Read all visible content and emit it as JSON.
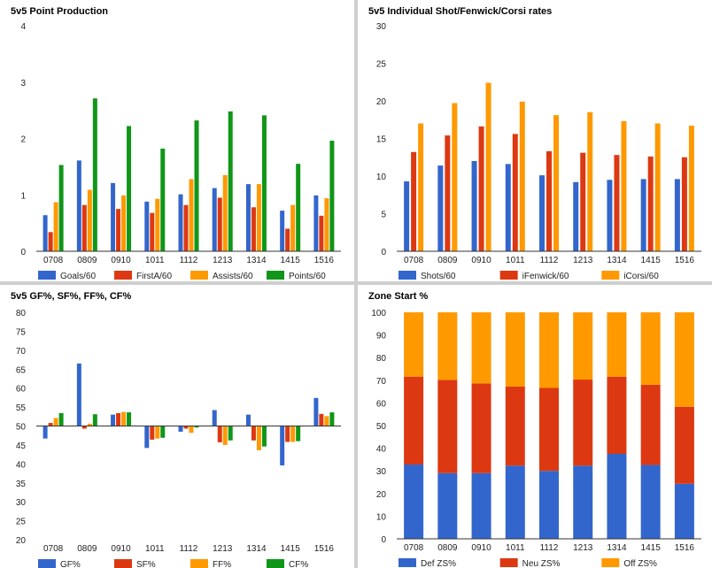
{
  "colors": {
    "blue": "#3366cc",
    "red": "#dc3912",
    "orange": "#ff9900",
    "green": "#109618",
    "grid": "#cccccc"
  },
  "chart_data": [
    {
      "type": "bar",
      "title": "5v5 Point Production",
      "categories": [
        "0708",
        "0809",
        "0910",
        "1011",
        "1112",
        "1213",
        "1314",
        "1415",
        "1516"
      ],
      "ylim": [
        0,
        4
      ],
      "yticks": [
        0,
        1,
        2,
        3,
        4
      ],
      "grid": false,
      "legend": "bottom",
      "series": [
        {
          "name": "Goals/60",
          "color": "#3366cc",
          "values": [
            0.64,
            1.61,
            1.21,
            0.88,
            1.01,
            1.12,
            1.19,
            0.72,
            0.99
          ]
        },
        {
          "name": "FirstA/60",
          "color": "#dc3912",
          "values": [
            0.34,
            0.82,
            0.75,
            0.68,
            0.82,
            0.95,
            0.78,
            0.4,
            0.63
          ]
        },
        {
          "name": "Assists/60",
          "color": "#ff9900",
          "values": [
            0.87,
            1.09,
            0.99,
            0.93,
            1.28,
            1.35,
            1.19,
            0.82,
            0.94
          ]
        },
        {
          "name": "Points/60",
          "color": "#109618",
          "values": [
            1.53,
            2.71,
            2.22,
            1.82,
            2.32,
            2.48,
            2.41,
            1.55,
            1.96
          ]
        }
      ]
    },
    {
      "type": "bar",
      "title": "5v5 Individual Shot/Fenwick/Corsi rates",
      "categories": [
        "0708",
        "0809",
        "0910",
        "1011",
        "1112",
        "1213",
        "1314",
        "1415",
        "1516"
      ],
      "ylim": [
        0,
        30
      ],
      "yticks": [
        0,
        5,
        10,
        15,
        20,
        25,
        30
      ],
      "grid": false,
      "legend": "bottom",
      "series": [
        {
          "name": "Shots/60",
          "color": "#3366cc",
          "values": [
            9.3,
            11.4,
            12.0,
            11.6,
            10.1,
            9.2,
            9.5,
            9.6,
            9.6
          ]
        },
        {
          "name": "iFenwick/60",
          "color": "#dc3912",
          "values": [
            13.2,
            15.4,
            16.6,
            15.6,
            13.3,
            13.1,
            12.8,
            12.6,
            12.5
          ]
        },
        {
          "name": "iCorsi/60",
          "color": "#ff9900",
          "values": [
            17.0,
            19.7,
            22.4,
            19.9,
            18.1,
            18.5,
            17.3,
            17.0,
            16.7
          ]
        }
      ]
    },
    {
      "type": "bar",
      "title": "5v5 GF%, SF%, FF%, CF%",
      "categories": [
        "0708",
        "0809",
        "0910",
        "1011",
        "1112",
        "1213",
        "1314",
        "1415",
        "1516"
      ],
      "ylim": [
        20,
        80
      ],
      "baseline": 50,
      "yticks": [
        20,
        25,
        30,
        35,
        40,
        45,
        50,
        55,
        60,
        65,
        70,
        75,
        80
      ],
      "grid": false,
      "legend": "bottom",
      "series": [
        {
          "name": "GF%",
          "color": "#3366cc",
          "values": [
            46.7,
            66.5,
            53.0,
            44.2,
            48.5,
            54.2,
            53.0,
            39.6,
            57.4
          ]
        },
        {
          "name": "SF%",
          "color": "#dc3912",
          "values": [
            50.8,
            49.3,
            53.4,
            46.4,
            49.3,
            45.7,
            46.2,
            45.8,
            53.2
          ]
        },
        {
          "name": "FF%",
          "color": "#ff9900",
          "values": [
            52.1,
            50.6,
            53.7,
            46.7,
            48.2,
            45.0,
            43.6,
            45.8,
            52.6
          ]
        },
        {
          "name": "CF%",
          "color": "#109618",
          "values": [
            53.4,
            53.1,
            53.6,
            46.9,
            49.6,
            46.2,
            44.6,
            46.0,
            53.6
          ]
        }
      ]
    },
    {
      "type": "bar",
      "stacked": true,
      "title": "Zone Start %",
      "categories": [
        "0708",
        "0809",
        "0910",
        "1011",
        "1112",
        "1213",
        "1314",
        "1415",
        "1516"
      ],
      "ylim": [
        0,
        100
      ],
      "yticks": [
        0,
        10,
        20,
        30,
        40,
        50,
        60,
        70,
        80,
        90,
        100
      ],
      "grid": false,
      "legend": "bottom",
      "series": [
        {
          "name": "Def ZS%",
          "color": "#3366cc",
          "values": [
            32.8,
            29.0,
            29.0,
            32.3,
            30.0,
            32.3,
            37.5,
            32.6,
            24.3
          ]
        },
        {
          "name": "Neu ZS%",
          "color": "#dc3912",
          "values": [
            38.8,
            41.2,
            39.6,
            34.9,
            36.6,
            38.0,
            34.1,
            35.4,
            34.0
          ]
        },
        {
          "name": "Off ZS%",
          "color": "#ff9900",
          "values": [
            28.4,
            29.8,
            31.4,
            32.8,
            33.4,
            29.7,
            28.4,
            32.0,
            41.7
          ]
        }
      ]
    }
  ]
}
